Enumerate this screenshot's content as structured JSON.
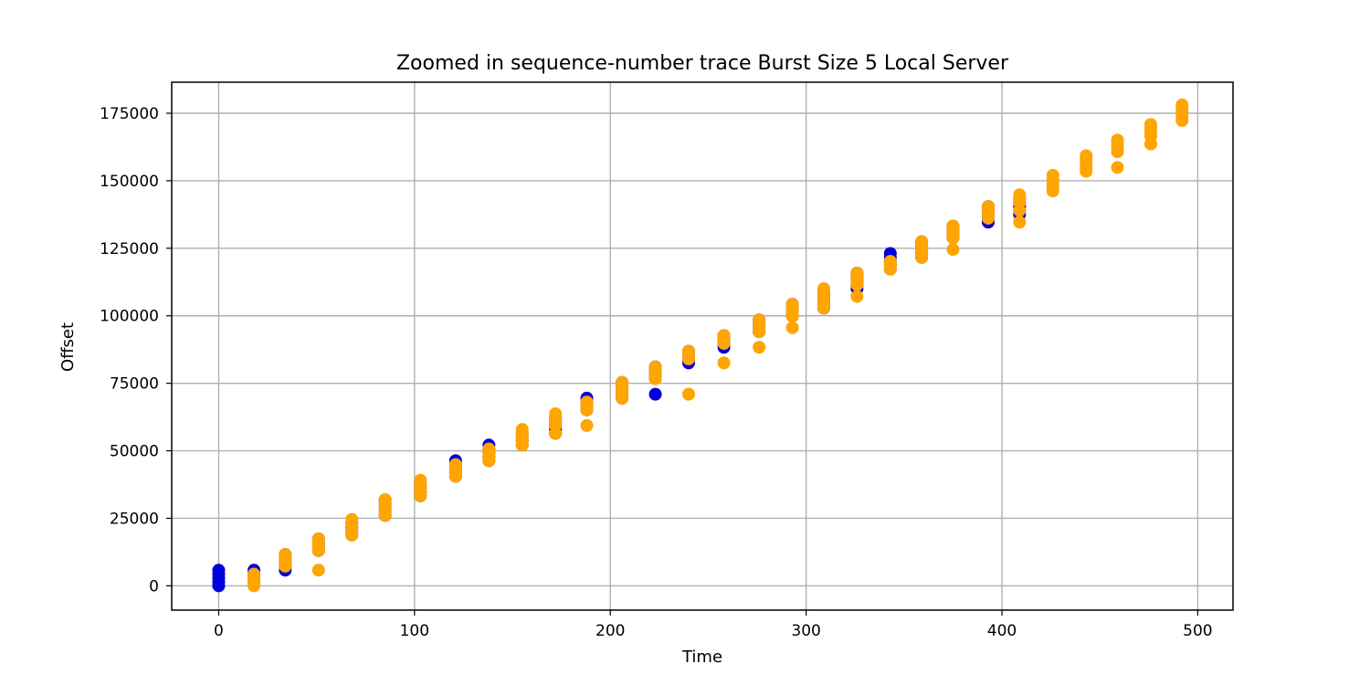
{
  "chart_data": {
    "type": "scatter",
    "title": "Zoomed in sequence-number trace Burst Size 5 Local Server",
    "xlabel": "Time",
    "ylabel": "Offset",
    "xlim": [
      -24,
      518
    ],
    "ylim": [
      -9000,
      186500
    ],
    "xticks": [
      0,
      100,
      200,
      300,
      400,
      500
    ],
    "yticks": [
      0,
      25000,
      50000,
      75000,
      100000,
      125000,
      150000,
      175000
    ],
    "grid": true,
    "legend": "none",
    "series": [
      {
        "color": "#0000dd",
        "points": [
          [
            0,
            0
          ],
          [
            0,
            1448
          ],
          [
            0,
            2896
          ],
          [
            0,
            4344
          ],
          [
            0,
            5792
          ],
          [
            18,
            1448
          ],
          [
            18,
            2896
          ],
          [
            18,
            4344
          ],
          [
            18,
            5792
          ],
          [
            34,
            5792
          ],
          [
            34,
            7240
          ],
          [
            34,
            8688
          ],
          [
            34,
            10136
          ],
          [
            34,
            11584
          ],
          [
            51,
            13032
          ],
          [
            51,
            14480
          ],
          [
            51,
            15928
          ],
          [
            51,
            17376
          ],
          [
            68,
            18824
          ],
          [
            68,
            20272
          ],
          [
            68,
            21720
          ],
          [
            68,
            23168
          ],
          [
            85,
            26064
          ],
          [
            85,
            27512
          ],
          [
            85,
            28960
          ],
          [
            85,
            30408
          ],
          [
            85,
            31856
          ],
          [
            103,
            33304
          ],
          [
            103,
            34752
          ],
          [
            103,
            36200
          ],
          [
            103,
            37648
          ],
          [
            121,
            40544
          ],
          [
            121,
            41992
          ],
          [
            121,
            43440
          ],
          [
            121,
            44888
          ],
          [
            121,
            46336
          ],
          [
            138,
            46336
          ],
          [
            138,
            47784
          ],
          [
            138,
            49232
          ],
          [
            138,
            50680
          ],
          [
            138,
            52128
          ],
          [
            155,
            52128
          ],
          [
            155,
            53576
          ],
          [
            155,
            55024
          ],
          [
            155,
            56472
          ],
          [
            172,
            56472
          ],
          [
            172,
            57920
          ],
          [
            172,
            59368
          ],
          [
            172,
            60816
          ],
          [
            172,
            62264
          ],
          [
            188,
            65160
          ],
          [
            188,
            66608
          ],
          [
            188,
            68056
          ],
          [
            188,
            69504
          ],
          [
            206,
            69504
          ],
          [
            206,
            70952
          ],
          [
            206,
            72400
          ],
          [
            206,
            73848
          ],
          [
            206,
            75296
          ],
          [
            223,
            70952
          ],
          [
            223,
            76744
          ],
          [
            223,
            78192
          ],
          [
            223,
            79640
          ],
          [
            223,
            81088
          ],
          [
            240,
            82536
          ],
          [
            240,
            83984
          ],
          [
            240,
            85432
          ],
          [
            240,
            86880
          ],
          [
            258,
            88328
          ],
          [
            258,
            89776
          ],
          [
            258,
            91224
          ],
          [
            258,
            92672
          ],
          [
            276,
            94120
          ],
          [
            276,
            95568
          ],
          [
            276,
            97016
          ],
          [
            276,
            98464
          ],
          [
            293,
            99912
          ],
          [
            293,
            101360
          ],
          [
            293,
            102808
          ],
          [
            293,
            104256
          ],
          [
            309,
            102808
          ],
          [
            309,
            104256
          ],
          [
            309,
            105704
          ],
          [
            309,
            107152
          ],
          [
            309,
            108600
          ],
          [
            326,
            110048
          ],
          [
            326,
            111496
          ],
          [
            326,
            112944
          ],
          [
            326,
            114392
          ],
          [
            326,
            115840
          ],
          [
            343,
            117288
          ],
          [
            343,
            118736
          ],
          [
            343,
            120184
          ],
          [
            343,
            121632
          ],
          [
            343,
            123080
          ],
          [
            359,
            121632
          ],
          [
            359,
            123080
          ],
          [
            359,
            124528
          ],
          [
            359,
            125976
          ],
          [
            359,
            127424
          ],
          [
            375,
            128872
          ],
          [
            375,
            130320
          ],
          [
            375,
            131768
          ],
          [
            375,
            133216
          ],
          [
            393,
            134664
          ],
          [
            393,
            136112
          ],
          [
            393,
            137560
          ],
          [
            393,
            139008
          ],
          [
            393,
            140456
          ],
          [
            409,
            137560
          ],
          [
            409,
            139008
          ],
          [
            409,
            140456
          ],
          [
            409,
            141904
          ],
          [
            409,
            143352
          ]
        ]
      },
      {
        "color": "#ffa500",
        "points": [
          [
            18,
            0
          ],
          [
            18,
            1448
          ],
          [
            18,
            2896
          ],
          [
            18,
            4344
          ],
          [
            34,
            7240
          ],
          [
            34,
            8688
          ],
          [
            34,
            10136
          ],
          [
            34,
            11584
          ],
          [
            51,
            5792
          ],
          [
            51,
            13032
          ],
          [
            51,
            14480
          ],
          [
            51,
            15928
          ],
          [
            51,
            17376
          ],
          [
            68,
            18824
          ],
          [
            68,
            20272
          ],
          [
            68,
            21720
          ],
          [
            68,
            23168
          ],
          [
            68,
            24616
          ],
          [
            85,
            26064
          ],
          [
            85,
            27512
          ],
          [
            85,
            28960
          ],
          [
            85,
            30408
          ],
          [
            85,
            31856
          ],
          [
            103,
            33304
          ],
          [
            103,
            34752
          ],
          [
            103,
            36200
          ],
          [
            103,
            37648
          ],
          [
            103,
            39096
          ],
          [
            121,
            40544
          ],
          [
            121,
            41992
          ],
          [
            121,
            43440
          ],
          [
            121,
            44888
          ],
          [
            138,
            46336
          ],
          [
            138,
            47784
          ],
          [
            138,
            49232
          ],
          [
            138,
            50680
          ],
          [
            155,
            52128
          ],
          [
            155,
            53576
          ],
          [
            155,
            55024
          ],
          [
            155,
            56472
          ],
          [
            155,
            57920
          ],
          [
            172,
            56472
          ],
          [
            172,
            59368
          ],
          [
            172,
            60816
          ],
          [
            172,
            62264
          ],
          [
            172,
            63712
          ],
          [
            188,
            59368
          ],
          [
            188,
            65160
          ],
          [
            188,
            66608
          ],
          [
            188,
            68056
          ],
          [
            206,
            69504
          ],
          [
            206,
            70952
          ],
          [
            206,
            72400
          ],
          [
            206,
            73848
          ],
          [
            206,
            75296
          ],
          [
            223,
            76744
          ],
          [
            223,
            78192
          ],
          [
            223,
            79640
          ],
          [
            223,
            81088
          ],
          [
            240,
            70952
          ],
          [
            240,
            84000
          ],
          [
            240,
            85432
          ],
          [
            240,
            86880
          ],
          [
            258,
            82536
          ],
          [
            258,
            89776
          ],
          [
            258,
            91224
          ],
          [
            258,
            92672
          ],
          [
            276,
            88328
          ],
          [
            276,
            94120
          ],
          [
            276,
            95568
          ],
          [
            276,
            97016
          ],
          [
            276,
            98464
          ],
          [
            293,
            95568
          ],
          [
            293,
            99912
          ],
          [
            293,
            101360
          ],
          [
            293,
            102808
          ],
          [
            293,
            104256
          ],
          [
            309,
            102808
          ],
          [
            309,
            104256
          ],
          [
            309,
            105704
          ],
          [
            309,
            107152
          ],
          [
            309,
            108600
          ],
          [
            309,
            110048
          ],
          [
            326,
            107152
          ],
          [
            326,
            111496
          ],
          [
            326,
            112944
          ],
          [
            326,
            114392
          ],
          [
            326,
            115840
          ],
          [
            343,
            117288
          ],
          [
            343,
            118736
          ],
          [
            343,
            120184
          ],
          [
            359,
            121632
          ],
          [
            359,
            123080
          ],
          [
            359,
            124528
          ],
          [
            359,
            125976
          ],
          [
            359,
            127424
          ],
          [
            375,
            124528
          ],
          [
            375,
            128872
          ],
          [
            375,
            130320
          ],
          [
            375,
            131768
          ],
          [
            375,
            133216
          ],
          [
            393,
            136112
          ],
          [
            393,
            137560
          ],
          [
            393,
            139008
          ],
          [
            393,
            140456
          ],
          [
            409,
            134664
          ],
          [
            409,
            139008
          ],
          [
            409,
            141904
          ],
          [
            409,
            143352
          ],
          [
            409,
            144800
          ],
          [
            426,
            146248
          ],
          [
            426,
            147696
          ],
          [
            426,
            149144
          ],
          [
            426,
            150592
          ],
          [
            426,
            152040
          ],
          [
            443,
            153488
          ],
          [
            443,
            154936
          ],
          [
            443,
            156384
          ],
          [
            443,
            157832
          ],
          [
            443,
            159280
          ],
          [
            459,
            154936
          ],
          [
            459,
            160728
          ],
          [
            459,
            162176
          ],
          [
            459,
            163624
          ],
          [
            459,
            165072
          ],
          [
            476,
            163624
          ],
          [
            476,
            166520
          ],
          [
            476,
            167968
          ],
          [
            476,
            169416
          ],
          [
            476,
            170864
          ],
          [
            492,
            172312
          ],
          [
            492,
            173760
          ],
          [
            492,
            175208
          ],
          [
            492,
            176656
          ],
          [
            492,
            178104
          ]
        ]
      }
    ]
  }
}
